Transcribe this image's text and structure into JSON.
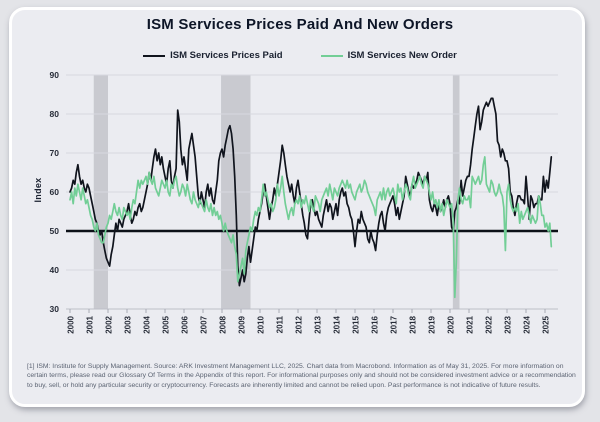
{
  "footnote": {
    "text": "[1] ISM: Institute for Supply Management. Source: ARK Investment Management LLC, 2025. Chart data from Macrobond. Information as of May 31, 2025. For more information on certain terms, please read our Glossary Of Terms in the Appendix of this report. For informational purposes only and should not be considered investment advice or a recommendation to buy, sell, or hold any particular security or cryptocurrency. Forecasts are inherently limited and cannot be relied upon. Past performance is not indicative of future results."
  },
  "chart_data": {
    "type": "line",
    "title": "ISM Services Prices Paid And New Orders",
    "xlabel": "",
    "ylabel": "Index",
    "ylim": [
      30,
      90
    ],
    "y_ticks": [
      30,
      40,
      50,
      60,
      70,
      80,
      90
    ],
    "x_start": 2000,
    "frequency": "monthly",
    "x_ticks": [
      "2000",
      "2001",
      "2002",
      "2003",
      "2004",
      "2005",
      "2006",
      "2007",
      "2008",
      "2009",
      "2010",
      "2011",
      "2012",
      "2013",
      "2014",
      "2015",
      "2016",
      "2017",
      "2018",
      "2019",
      "2020",
      "2021",
      "2022",
      "2023",
      "2024",
      "2025"
    ],
    "grid": "horizontal",
    "legend_position": "top-center",
    "reference_line": 50,
    "recession_bands": [
      [
        2001.25,
        2002.0
      ],
      [
        2007.95,
        2009.5
      ],
      [
        2020.15,
        2020.5
      ]
    ],
    "colors": {
      "series_black": "#10141d",
      "accent_green": "#72ce96",
      "recession_band": "#c9cad0",
      "gridline": "#d7d8df",
      "axis_line": "#bdbfc8",
      "tick_mark": "#a9abb5",
      "tick_text": "#272c38",
      "reference_line": "#0c1118",
      "card_background": "#ebecf1",
      "page_background": "#e3e4e8"
    },
    "series": [
      {
        "name": "ISM Services Prices Paid",
        "color": "#10141d",
        "values": [
          60,
          61,
          63,
          62,
          65,
          67,
          64,
          62,
          63,
          61,
          60,
          62,
          61,
          59,
          57,
          55,
          53,
          52,
          50,
          49,
          50,
          47,
          45,
          43,
          42,
          41,
          44,
          46,
          49,
          52,
          50,
          53,
          52,
          51,
          53,
          54,
          55,
          57,
          54,
          52,
          53,
          55,
          54,
          56,
          57,
          55,
          56,
          58,
          60,
          62,
          65,
          63,
          66,
          69,
          71,
          68,
          70,
          67,
          69,
          66,
          64,
          62,
          66,
          68,
          63,
          61,
          64,
          66,
          81,
          78,
          71,
          67,
          69,
          66,
          63,
          71,
          73,
          75,
          72,
          69,
          64,
          59,
          57,
          60,
          58,
          56,
          60,
          62,
          59,
          61,
          58,
          57,
          60,
          63,
          68,
          70,
          71,
          69,
          72,
          74,
          76,
          77,
          75,
          71,
          64,
          54,
          41,
          36,
          38,
          40,
          37,
          39,
          43,
          46,
          42,
          45,
          48,
          51,
          50,
          53,
          55,
          57,
          60,
          62,
          59,
          56,
          53,
          56,
          58,
          61,
          59,
          62,
          65,
          68,
          72,
          70,
          67,
          64,
          62,
          60,
          62,
          59,
          57,
          61,
          63,
          60,
          57,
          54,
          52,
          49,
          48,
          53,
          57,
          58,
          56,
          54,
          55,
          53,
          52,
          51,
          54,
          56,
          58,
          55,
          57,
          56,
          53,
          55,
          57,
          54,
          58,
          60,
          61,
          59,
          60,
          57,
          56,
          54,
          53,
          50,
          46,
          50,
          53,
          52,
          55,
          53,
          52,
          51,
          48,
          47,
          50,
          48,
          47,
          45,
          49,
          52,
          54,
          55,
          52,
          50,
          54,
          56,
          57,
          58,
          59,
          57,
          54,
          56,
          53,
          55,
          57,
          59,
          64,
          62,
          60,
          59,
          62,
          61,
          62,
          63,
          65,
          64,
          63,
          62,
          64,
          63,
          65,
          58,
          56,
          55,
          57,
          56,
          54,
          57,
          55,
          56,
          58,
          56,
          58,
          59,
          57,
          51,
          50,
          55,
          56,
          58,
          57,
          63,
          59,
          61,
          63,
          64,
          64,
          67,
          71,
          74,
          77,
          80,
          82,
          76,
          78,
          81,
          82,
          83,
          82,
          83,
          84,
          84,
          82,
          80,
          73,
          72,
          69,
          71,
          70,
          68,
          68,
          66,
          60,
          59,
          56,
          54,
          57,
          59,
          59,
          58,
          58,
          57,
          64,
          59,
          53,
          59,
          58,
          56,
          57,
          57,
          59,
          58,
          58,
          64,
          60,
          63,
          61,
          65,
          69
        ]
      },
      {
        "name": "ISM Services New Order",
        "color": "#72ce96",
        "values": [
          58,
          60,
          57,
          61,
          59,
          62,
          60,
          58,
          61,
          59,
          57,
          58,
          56,
          54,
          53,
          51,
          50,
          52,
          49,
          48,
          47,
          47,
          49,
          51,
          52,
          54,
          53,
          55,
          57,
          55,
          54,
          56,
          54,
          53,
          56,
          55,
          54,
          55,
          53,
          56,
          58,
          57,
          60,
          63,
          61,
          63,
          62,
          63,
          64,
          62,
          65,
          63,
          62,
          64,
          61,
          60,
          59,
          61,
          63,
          62,
          61,
          63,
          60,
          59,
          62,
          61,
          63,
          64,
          61,
          59,
          60,
          62,
          61,
          59,
          62,
          60,
          58,
          57,
          60,
          58,
          57,
          56,
          58,
          57,
          56,
          55,
          58,
          56,
          55,
          57,
          54,
          56,
          54,
          55,
          53,
          54,
          52,
          50,
          52,
          50,
          49,
          48,
          47,
          49,
          46,
          44,
          37,
          39,
          41,
          43,
          39,
          45,
          47,
          49,
          51,
          50,
          53,
          55,
          54,
          56,
          55,
          58,
          62,
          59,
          60,
          58,
          56,
          57,
          55,
          56,
          58,
          62,
          59,
          61,
          64,
          60,
          57,
          55,
          53,
          55,
          56,
          54,
          57,
          58,
          57,
          59,
          56,
          58,
          57,
          59,
          57,
          55,
          58,
          56,
          55,
          59,
          58,
          57,
          55,
          58,
          59,
          60,
          61,
          59,
          62,
          60,
          58,
          61,
          60,
          59,
          61,
          62,
          63,
          62,
          61,
          63,
          61,
          62,
          60,
          59,
          58,
          60,
          61,
          62,
          60,
          61,
          63,
          62,
          60,
          59,
          58,
          57,
          56,
          54,
          58,
          59,
          60,
          58,
          61,
          58,
          60,
          61,
          59,
          60,
          61,
          59,
          57,
          62,
          60,
          61,
          58,
          60,
          62,
          61,
          59,
          58,
          62,
          64,
          61,
          62,
          63,
          64,
          62,
          61,
          64,
          63,
          62,
          60,
          58,
          60,
          57,
          58,
          56,
          58,
          55,
          57,
          54,
          56,
          58,
          57,
          56,
          57,
          53,
          33,
          42,
          58,
          61,
          58,
          57,
          59,
          58,
          58,
          59,
          56,
          64,
          63,
          62,
          63,
          64,
          62,
          63,
          67,
          69,
          62,
          61,
          60,
          63,
          62,
          60,
          59,
          60,
          62,
          60,
          59,
          56,
          45,
          60,
          62,
          58,
          56,
          55,
          56,
          55,
          57,
          52,
          55,
          53,
          54,
          55,
          56,
          54,
          52,
          54,
          53,
          52,
          53,
          59,
          57,
          54,
          54,
          51,
          52,
          50,
          52,
          46
        ]
      }
    ]
  }
}
